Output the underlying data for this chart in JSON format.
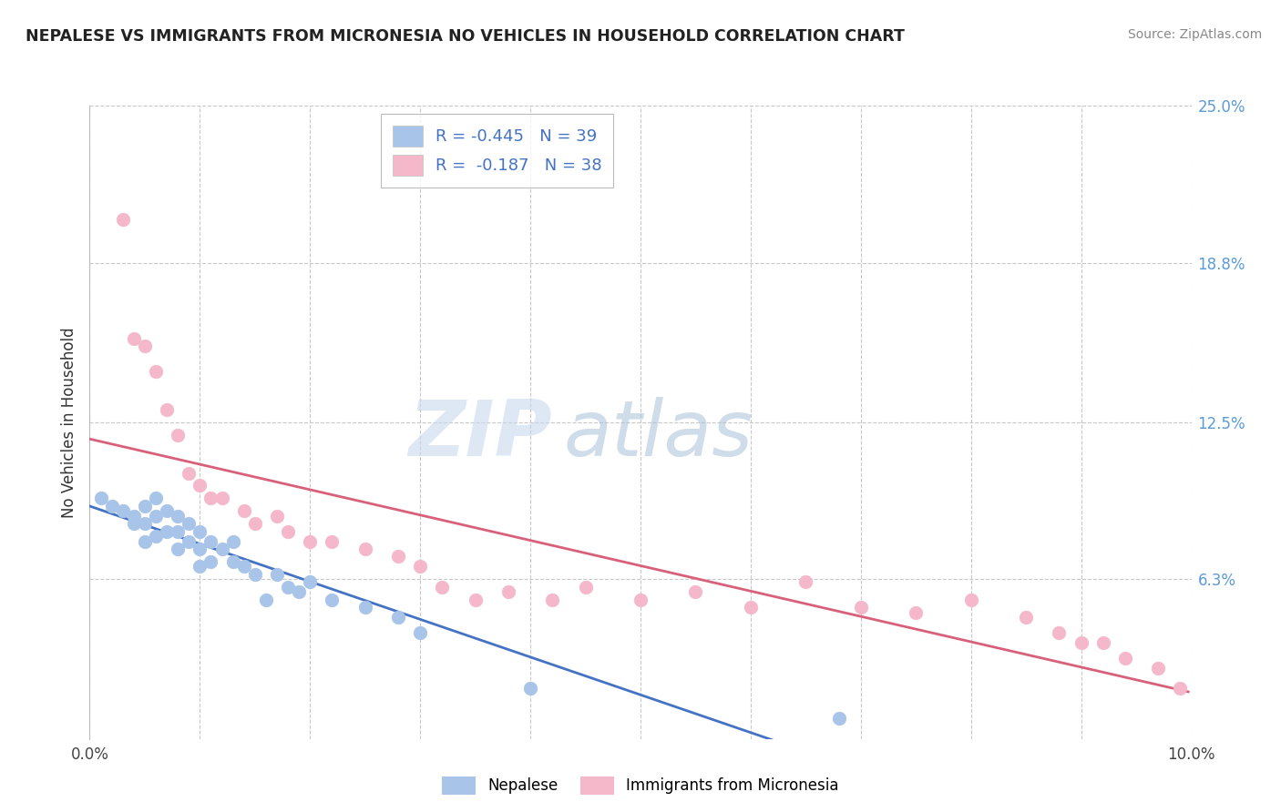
{
  "title": "NEPALESE VS IMMIGRANTS FROM MICRONESIA NO VEHICLES IN HOUSEHOLD CORRELATION CHART",
  "source": "Source: ZipAtlas.com",
  "ylabel": "No Vehicles in Household",
  "xlim": [
    0.0,
    0.1
  ],
  "ylim": [
    0.0,
    0.25
  ],
  "ytick_positions_right": [
    0.25,
    0.188,
    0.125,
    0.063
  ],
  "ytick_labels_right": [
    "25.0%",
    "18.8%",
    "12.5%",
    "6.3%"
  ],
  "gridline_y": [
    0.25,
    0.188,
    0.125,
    0.063
  ],
  "legend_r1": "R = -0.445   N = 39",
  "legend_r2": "R =  -0.187   N = 38",
  "blue_scatter": "#a8c4e8",
  "pink_scatter": "#f4b8ca",
  "blue_line": "#4472c4",
  "pink_line": "#d9607a",
  "watermark_zip": "ZIP",
  "watermark_atlas": "atlas",
  "nepalese_x": [
    0.001,
    0.002,
    0.003,
    0.004,
    0.004,
    0.005,
    0.005,
    0.005,
    0.006,
    0.006,
    0.006,
    0.007,
    0.007,
    0.008,
    0.008,
    0.008,
    0.009,
    0.009,
    0.01,
    0.01,
    0.01,
    0.011,
    0.011,
    0.012,
    0.013,
    0.013,
    0.014,
    0.015,
    0.016,
    0.017,
    0.018,
    0.019,
    0.02,
    0.022,
    0.025,
    0.028,
    0.03,
    0.04,
    0.068
  ],
  "nepalese_y": [
    0.095,
    0.092,
    0.09,
    0.088,
    0.085,
    0.092,
    0.085,
    0.078,
    0.095,
    0.088,
    0.08,
    0.09,
    0.082,
    0.088,
    0.082,
    0.075,
    0.085,
    0.078,
    0.082,
    0.075,
    0.068,
    0.078,
    0.07,
    0.075,
    0.078,
    0.07,
    0.068,
    0.065,
    0.055,
    0.065,
    0.06,
    0.058,
    0.062,
    0.055,
    0.052,
    0.048,
    0.042,
    0.02,
    0.008
  ],
  "micronesia_x": [
    0.003,
    0.004,
    0.005,
    0.006,
    0.007,
    0.008,
    0.009,
    0.01,
    0.011,
    0.012,
    0.014,
    0.015,
    0.017,
    0.018,
    0.02,
    0.022,
    0.025,
    0.028,
    0.03,
    0.032,
    0.035,
    0.038,
    0.042,
    0.045,
    0.05,
    0.055,
    0.06,
    0.065,
    0.07,
    0.075,
    0.08,
    0.085,
    0.088,
    0.09,
    0.092,
    0.094,
    0.097,
    0.099
  ],
  "micronesia_y": [
    0.205,
    0.158,
    0.155,
    0.145,
    0.13,
    0.12,
    0.105,
    0.1,
    0.095,
    0.095,
    0.09,
    0.085,
    0.088,
    0.082,
    0.078,
    0.078,
    0.075,
    0.072,
    0.068,
    0.06,
    0.055,
    0.058,
    0.055,
    0.06,
    0.055,
    0.058,
    0.052,
    0.062,
    0.052,
    0.05,
    0.055,
    0.048,
    0.042,
    0.038,
    0.038,
    0.032,
    0.028,
    0.02
  ]
}
